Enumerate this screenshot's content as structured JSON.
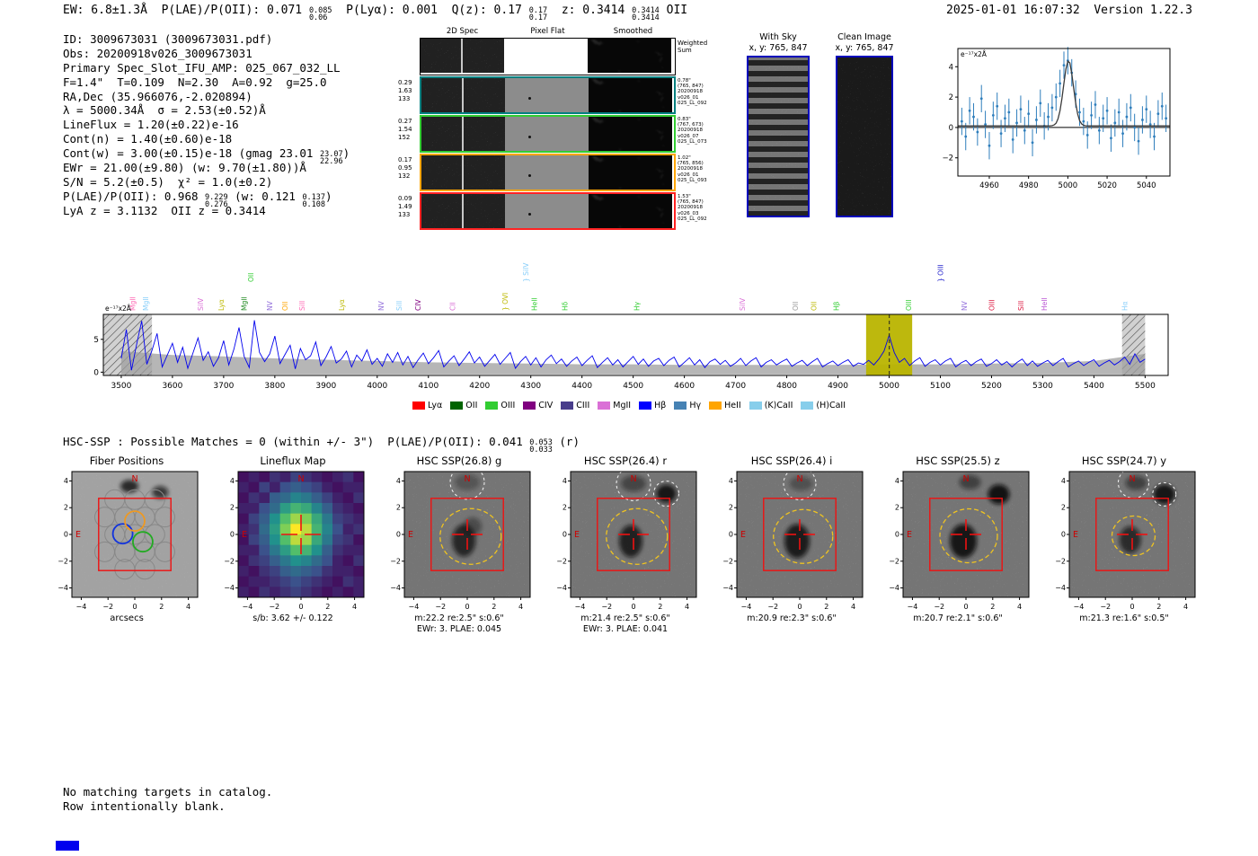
{
  "header": {
    "left_parts": [
      {
        "text": "EW: 6.8±1.3Å  P(LAE)/P(OII): 0.071 "
      },
      {
        "stack": [
          "0.085",
          "0.06"
        ]
      },
      {
        "text": "  P(Lyα): 0.001  Q(z): 0.17 "
      },
      {
        "stack": [
          "0.17",
          "0.17"
        ]
      },
      {
        "text": "  z: 0.3414 "
      },
      {
        "stack": [
          "0.3414",
          "0.3414"
        ]
      },
      {
        "text": " OII"
      }
    ],
    "right": "2025-01-01 16:07:32  Version 1.22.3"
  },
  "info": {
    "lines": [
      [
        {
          "text": "ID: 3009673031 (3009673031.pdf)"
        }
      ],
      [
        {
          "text": "Obs: 20200918v026_3009673031"
        }
      ],
      [
        {
          "text": "Primary Spec_Slot_IFU_AMP: 025_067_032_LL"
        }
      ],
      [
        {
          "text": "F=1.4\"  T=0.109  N=2.30  A=0.92  g=25.0"
        }
      ],
      [
        {
          "text": "RA,Dec (35.966076,-2.020894)"
        }
      ],
      [
        {
          "text": "λ = 5000.34Å  σ = 2.53(±0.52)Å"
        }
      ],
      [
        {
          "text": "LineFlux = 1.20(±0.22)e-16"
        }
      ],
      [
        {
          "text": "Cont(n) = 1.40(±0.60)e-18"
        }
      ],
      [
        {
          "text": "Cont(w) = 3.00(±0.15)e-18 (gmag 23.01 "
        },
        {
          "stack": [
            "23.07",
            "22.96"
          ]
        },
        {
          "text": ")"
        }
      ],
      [
        {
          "text": "EWr = 21.00(±9.80) (w: 9.70(±1.80))Å"
        }
      ],
      [
        {
          "text": "S/N = 5.2(±0.5)  χ² = 1.0(±0.2)"
        }
      ],
      [
        {
          "text": "P(LAE)/P(OII): 0.968 "
        },
        {
          "stack": [
            "9.229",
            "0.276"
          ]
        },
        {
          "text": " (w: 0.121 "
        },
        {
          "stack": [
            "0.137",
            "0.108"
          ]
        },
        {
          "text": ")"
        }
      ],
      [
        {
          "text": "LyA z = 3.1132  OII z = 0.3414"
        }
      ]
    ]
  },
  "spec2d": {
    "col_headers": [
      "2D Spec",
      "Pixel Flat",
      "Smoothed"
    ],
    "weighted_sum": [
      "Weighted",
      "Sum"
    ],
    "rows": [
      {
        "border": "#008080",
        "left": [
          "0.29",
          "1.63",
          "133"
        ],
        "right": [
          "0.78\"",
          "(765, 847)",
          "20200918",
          "v026_01",
          "025_LL_092"
        ]
      },
      {
        "border": "#32cd32",
        "left": [
          "0.27",
          "1.54",
          "152"
        ],
        "right": [
          "0.83\"",
          "(767, 673)",
          "20200918",
          "v026_07",
          "025_LL_073"
        ]
      },
      {
        "border": "#ffa500",
        "left": [
          "0.17",
          "0.95",
          "132"
        ],
        "right": [
          "1.02\"",
          "(765, 856)",
          "20200918",
          "v026_01",
          "025_LL_093"
        ]
      },
      {
        "border": "#ff2222",
        "left": [
          "0.09",
          "1.49",
          "133"
        ],
        "right": [
          "1.53\"",
          "(765, 847)",
          "20200918",
          "v026_03",
          "025_LL_092"
        ]
      }
    ]
  },
  "sky_panels": {
    "with_sky": {
      "title": "With Sky",
      "coords": "x, y: 765, 847"
    },
    "clean": {
      "title": "Clean Image",
      "coords": "x, y: 765, 847"
    }
  },
  "hsc_line_parts": [
    {
      "text": "HSC-SSP : Possible Matches = 0 (within +/- 3\")  P(LAE)/P(OII): 0.041 "
    },
    {
      "stack": [
        "0.053",
        "0.033"
      ]
    },
    {
      "text": " (r)"
    }
  ],
  "legend": {
    "items": [
      {
        "label": "Lyα",
        "color": "#ff0000"
      },
      {
        "label": "OII",
        "color": "#006400"
      },
      {
        "label": "OIII",
        "color": "#32cd32"
      },
      {
        "label": "CIV",
        "color": "#800080"
      },
      {
        "label": "CIII",
        "color": "#483d8b"
      },
      {
        "label": "MgII",
        "color": "#da70d6"
      },
      {
        "label": "Hβ",
        "color": "#0000ff"
      },
      {
        "label": "Hγ",
        "color": "#4682b4"
      },
      {
        "label": "HeII",
        "color": "#ffa500"
      },
      {
        "label": "(K)CaII",
        "color": "#87ceeb"
      },
      {
        "label": "(H)CaII",
        "color": "#87ceeb"
      }
    ]
  },
  "cutouts": {
    "axis_ticks": [
      -4,
      -2,
      0,
      2,
      4
    ],
    "compass": {
      "north": "N",
      "east": "E"
    },
    "panels": [
      {
        "type": "fiber",
        "title": "Fiber Positions",
        "captions": [
          "arcsecs"
        ]
      },
      {
        "type": "map",
        "title": "Lineflux Map",
        "captions": [
          "s/b: 3.62 +/- 0.122"
        ]
      },
      {
        "type": "img",
        "title": "HSC SSP(26.8) g",
        "captions": [
          "m:22.2 re:2.5\" s:0.6\"",
          "EWr: 3. PLAE: 0.045"
        ]
      },
      {
        "type": "img",
        "title": "HSC SSP(26.4) r",
        "captions": [
          "m:21.4 re:2.5\" s:0.6\"",
          "EWr: 3. PLAE: 0.041"
        ]
      },
      {
        "type": "img",
        "title": "HSC SSP(26.4) i",
        "captions": [
          "m:20.9 re:2.3\" s:0.6\""
        ]
      },
      {
        "type": "img",
        "title": "HSC SSP(25.5) z",
        "captions": [
          "m:20.7 re:2.1\" s:0.6\""
        ]
      },
      {
        "type": "img",
        "title": "HSC SSP(24.7) y",
        "captions": [
          "m:21.3 re:1.6\" s:0.5\""
        ]
      }
    ]
  },
  "footer": {
    "lines": [
      "No matching targets in catalog.",
      "Row intentionally blank."
    ]
  },
  "chart_data": [
    {
      "type": "scatter",
      "name": "emission-line-fit-inset",
      "annotation": "e⁻¹⁷x2Å",
      "xlim": [
        4944,
        5052
      ],
      "ylim": [
        -3.2,
        5.2
      ],
      "xticks": [
        4960,
        4980,
        5000,
        5020,
        5040
      ],
      "yticks": [
        -2,
        0,
        2,
        4
      ],
      "marker_color": "#2e7ebc",
      "fit_color": "#3a3a3a",
      "yerr": 0.9,
      "fit": {
        "center": 5000.34,
        "sigma": 2.53,
        "amplitude": 4.3,
        "continuum": 0.1
      },
      "x_start": 4946,
      "x_step": 2,
      "y": [
        0.4,
        -0.6,
        1.1,
        0.7,
        -0.3,
        1.9,
        0.2,
        -1.2,
        0.8,
        1.4,
        -0.4,
        0.6,
        1.0,
        -0.8,
        0.3,
        1.2,
        -0.2,
        0.9,
        -1.0,
        0.5,
        1.6,
        0.1,
        0.7,
        1.3,
        2.0,
        2.9,
        4.1,
        4.4,
        3.6,
        2.2,
        1.0,
        0.4,
        -0.5,
        0.8,
        1.5,
        -0.2,
        0.6,
        1.1,
        -0.7,
        0.3,
        1.0,
        -0.4,
        0.7,
        1.3,
        0.0,
        -0.9,
        0.5,
        1.2,
        0.2,
        -0.6,
        0.9,
        1.4,
        0.6
      ]
    },
    {
      "type": "line",
      "name": "full-spectrum",
      "annotation": "e⁻¹⁷x2Å",
      "xlim": [
        3465,
        5545
      ],
      "ylim": [
        -0.5,
        8.8
      ],
      "xticks": [
        3500,
        3600,
        3700,
        3800,
        3900,
        4000,
        4100,
        4200,
        4300,
        4400,
        4500,
        4600,
        4700,
        4800,
        4900,
        5000,
        5100,
        5200,
        5300,
        5400,
        5500
      ],
      "yticks": [
        0,
        5
      ],
      "line_color": "#0000ee",
      "x_start": 3500,
      "x_step": 10,
      "values": [
        2.1,
        6.5,
        0.3,
        4.2,
        7.8,
        1.2,
        3.3,
        5.9,
        0.8,
        2.6,
        4.4,
        1.5,
        3.8,
        0.6,
        2.9,
        5.2,
        1.8,
        3.1,
        0.9,
        2.2,
        4.8,
        1.1,
        3.5,
        6.8,
        2.4,
        0.7,
        7.9,
        3.0,
        1.6,
        2.8,
        5.5,
        1.3,
        2.7,
        4.1,
        0.5,
        3.6,
        1.9,
        2.5,
        4.6,
        1.0,
        2.3,
        3.9,
        1.4,
        2.0,
        3.2,
        0.8,
        2.6,
        1.7,
        3.4,
        1.2,
        2.1,
        0.9,
        2.8,
        1.5,
        3.0,
        1.1,
        2.4,
        0.7,
        1.9,
        2.9,
        1.3,
        2.2,
        3.3,
        0.8,
        1.7,
        2.5,
        1.0,
        2.0,
        3.1,
        1.4,
        2.3,
        0.9,
        1.8,
        2.7,
        1.2,
        2.1,
        3.0,
        0.6,
        1.6,
        2.4,
        1.1,
        2.2,
        0.8,
        1.9,
        2.6,
        1.3,
        2.0,
        0.9,
        1.7,
        2.3,
        1.0,
        1.8,
        2.5,
        0.7,
        1.5,
        2.2,
        1.1,
        1.9,
        0.8,
        1.6,
        2.4,
        1.2,
        2.0,
        0.9,
        1.7,
        2.1,
        1.0,
        1.8,
        2.3,
        0.8,
        1.5,
        2.2,
        1.1,
        1.9,
        0.7,
        1.6,
        2.0,
        1.2,
        1.8,
        0.9,
        1.4,
        2.1,
        1.0,
        1.7,
        2.2,
        0.8,
        1.5,
        1.9,
        1.1,
        1.6,
        2.0,
        0.9,
        1.4,
        1.8,
        1.0,
        1.6,
        2.1,
        0.8,
        1.3,
        1.7,
        1.0,
        1.5,
        1.9,
        0.9,
        1.4,
        1.2,
        1.8,
        1.1,
        2.0,
        3.2,
        5.6,
        3.0,
        1.5,
        2.1,
        1.0,
        1.7,
        2.2,
        0.9,
        1.5,
        1.9,
        1.1,
        1.7,
        2.1,
        0.8,
        1.4,
        1.8,
        1.0,
        1.6,
        2.0,
        0.9,
        1.3,
        1.9,
        1.1,
        1.6,
        0.8,
        1.5,
        2.0,
        1.0,
        1.7,
        0.9,
        1.4,
        1.8,
        1.0,
        1.6,
        2.1,
        0.8,
        1.3,
        1.7,
        1.0,
        1.5,
        1.9,
        0.9,
        1.4,
        1.8,
        1.1,
        1.6,
        2.3,
        1.2,
        2.8,
        1.5,
        2.0
      ],
      "err_x_step": 100,
      "err": [
        3.2,
        2.6,
        2.4,
        2.1,
        1.9,
        1.7,
        1.5,
        1.4,
        1.3,
        1.2,
        1.2,
        1.1,
        1.1,
        1.1,
        1.1,
        1.2,
        1.2,
        1.3,
        1.4,
        1.7,
        2.8
      ],
      "highlight_band": {
        "x0": 4955,
        "x1": 5045,
        "color": "#b9b400"
      },
      "dashed_line_x": 5000.34,
      "hatch_bands": [
        {
          "x0": 3465,
          "x1": 3560
        },
        {
          "x0": 5455,
          "x1": 5500
        }
      ],
      "labels": [
        {
          "text": "MgII",
          "wl": 3527,
          "color": "#ff69b4"
        },
        {
          "text": "MgII",
          "wl": 3553,
          "color": "#87cefa"
        },
        {
          "text": "SiIV",
          "wl": 3660,
          "color": "#da70d6"
        },
        {
          "text": "Lyα",
          "wl": 3700,
          "color": "#bdb800"
        },
        {
          "text": "MgII",
          "wl": 3745,
          "color": "#228b22"
        },
        {
          "text": "OII",
          "wl": 3758,
          "color": "#32cd32",
          "tall": true
        },
        {
          "text": "NV",
          "wl": 3795,
          "color": "#9370db"
        },
        {
          "text": "OII",
          "wl": 3825,
          "color": "#ffa500"
        },
        {
          "text": "SiII",
          "wl": 3858,
          "color": "#ff69b4"
        },
        {
          "text": "Lyα",
          "wl": 3935,
          "color": "#bdb800"
        },
        {
          "text": "NV",
          "wl": 4013,
          "color": "#9370db"
        },
        {
          "text": "SiII",
          "wl": 4048,
          "color": "#87cefa"
        },
        {
          "text": "CIV",
          "wl": 4085,
          "color": "#800080"
        },
        {
          "text": "CII",
          "wl": 4152,
          "color": "#da70d6"
        },
        {
          "text": "OVI",
          "wl": 4255,
          "color": "#bdb800",
          "brace": true
        },
        {
          "text": "SiIV",
          "wl": 4295,
          "color": "#87cefa",
          "tall": true,
          "brace": true
        },
        {
          "text": "HeII",
          "wl": 4312,
          "color": "#32cd32"
        },
        {
          "text": "Hδ",
          "wl": 4372,
          "color": "#32cd32"
        },
        {
          "text": "Hγ",
          "wl": 4512,
          "color": "#32cd32"
        },
        {
          "text": "SiIV",
          "wl": 4718,
          "color": "#da70d6"
        },
        {
          "text": "OII",
          "wl": 4822,
          "color": "#999999"
        },
        {
          "text": "OII",
          "wl": 4858,
          "color": "#bdb800"
        },
        {
          "text": "Hβ",
          "wl": 4902,
          "color": "#32cd32"
        },
        {
          "text": "OIII",
          "wl": 5043,
          "color": "#32cd32"
        },
        {
          "text": "OIII",
          "wl": 5105,
          "color": "#2222cc",
          "tall": true,
          "brace": true
        },
        {
          "text": "NV",
          "wl": 5152,
          "color": "#9370db"
        },
        {
          "text": "OIII",
          "wl": 5205,
          "color": "#dc143c"
        },
        {
          "text": "SiII",
          "wl": 5262,
          "color": "#dc143c"
        },
        {
          "text": "HeII",
          "wl": 5308,
          "color": "#ba55d3"
        },
        {
          "text": "Hα",
          "wl": 5465,
          "color": "#87cefa"
        }
      ]
    },
    {
      "type": "heatmap",
      "name": "lineflux-map",
      "colormap": "viridis",
      "sb_text": "s/b: 3.62 +/- 0.122",
      "values": [
        [
          0.05,
          0.1,
          0.05,
          0.15,
          0.1,
          0.2,
          0.15,
          0.1,
          0.05,
          0.1,
          0.15,
          0.05
        ],
        [
          0.1,
          0.05,
          0.2,
          0.1,
          0.25,
          0.3,
          0.25,
          0.2,
          0.1,
          0.05,
          0.1,
          0.1
        ],
        [
          0.05,
          0.15,
          0.1,
          0.3,
          0.35,
          0.45,
          0.4,
          0.3,
          0.2,
          0.1,
          0.05,
          0.15
        ],
        [
          0.1,
          0.1,
          0.25,
          0.35,
          0.55,
          0.65,
          0.6,
          0.45,
          0.3,
          0.15,
          0.1,
          0.05
        ],
        [
          0.05,
          0.2,
          0.3,
          0.5,
          0.7,
          0.85,
          0.8,
          0.6,
          0.4,
          0.2,
          0.15,
          0.1
        ],
        [
          0.1,
          0.15,
          0.35,
          0.55,
          0.8,
          1.0,
          0.9,
          0.65,
          0.45,
          0.25,
          0.1,
          0.15
        ],
        [
          0.05,
          0.2,
          0.3,
          0.5,
          0.7,
          0.9,
          0.85,
          0.6,
          0.4,
          0.2,
          0.15,
          0.05
        ],
        [
          0.1,
          0.1,
          0.25,
          0.4,
          0.55,
          0.7,
          0.65,
          0.5,
          0.3,
          0.15,
          0.1,
          0.1
        ],
        [
          0.05,
          0.15,
          0.2,
          0.3,
          0.4,
          0.5,
          0.45,
          0.35,
          0.25,
          0.1,
          0.05,
          0.15
        ],
        [
          0.1,
          0.05,
          0.15,
          0.2,
          0.3,
          0.35,
          0.3,
          0.25,
          0.15,
          0.1,
          0.1,
          0.05
        ],
        [
          0.05,
          0.1,
          0.1,
          0.15,
          0.2,
          0.25,
          0.2,
          0.15,
          0.1,
          0.05,
          0.15,
          0.1
        ],
        [
          0.1,
          0.05,
          0.15,
          0.1,
          0.15,
          0.2,
          0.15,
          0.1,
          0.05,
          0.1,
          0.05,
          0.1
        ]
      ]
    }
  ]
}
